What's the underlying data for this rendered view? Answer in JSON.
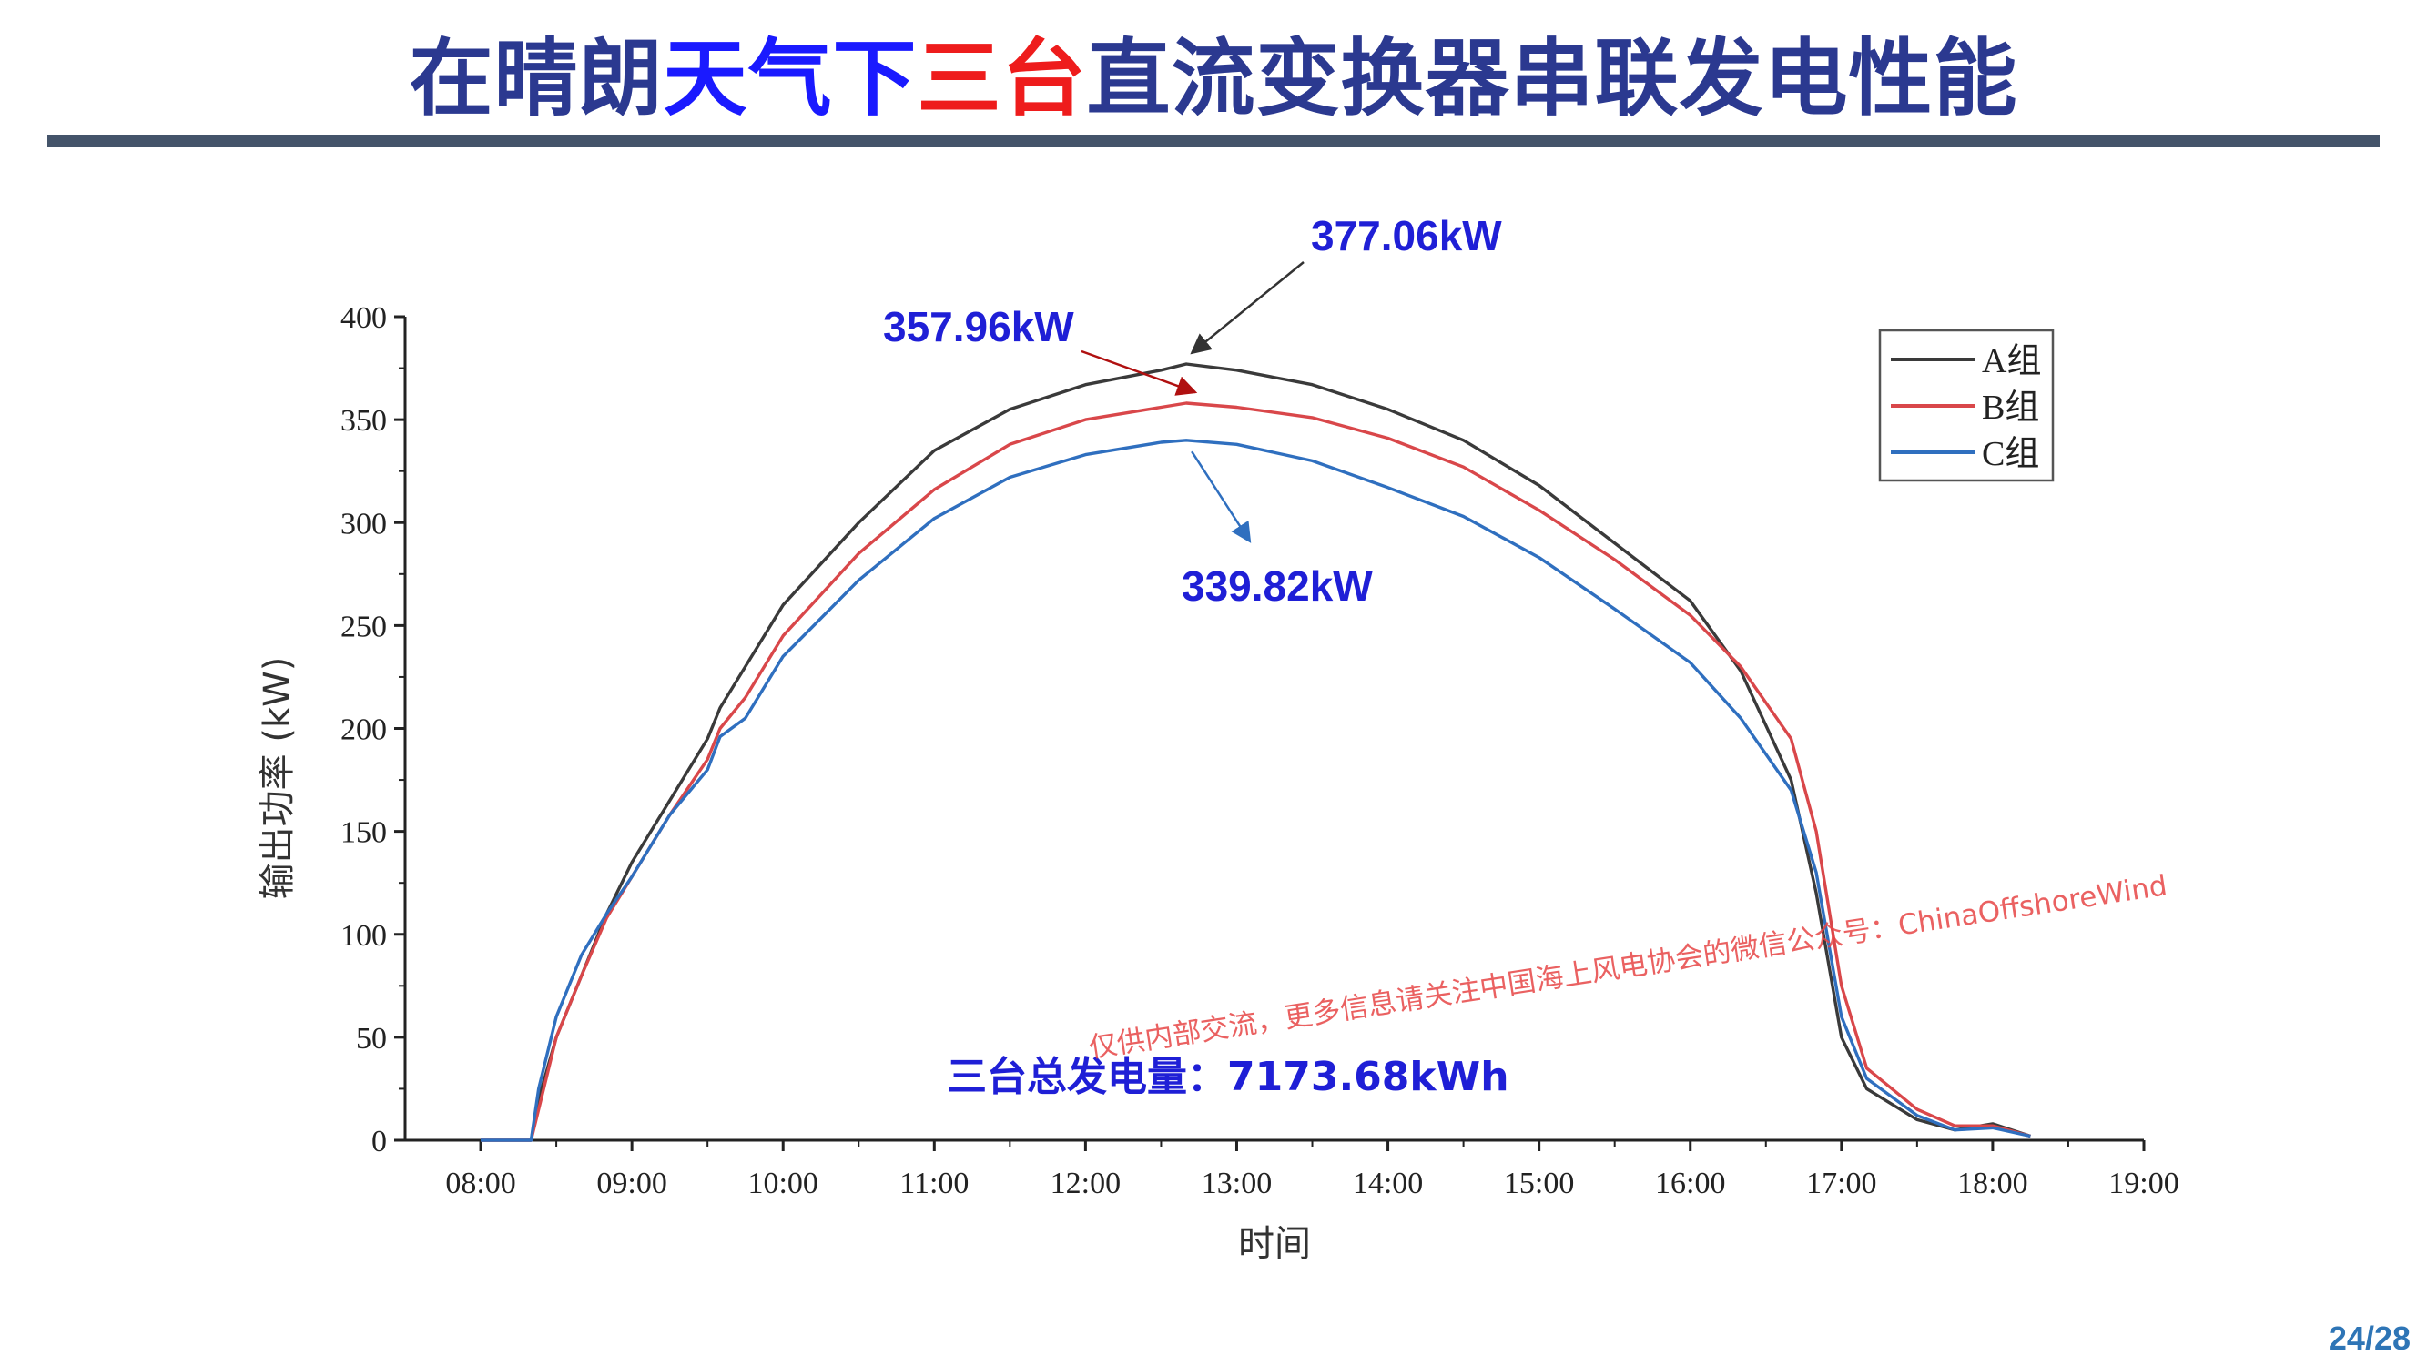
{
  "slide": {
    "title_parts": [
      "在晴朗",
      "天气下",
      "三台",
      "直流变换器串联发电性能"
    ],
    "page_number": "24/28",
    "watermark": "仅供内部交流，更多信息请关注中国海上风电协会的微信公众号：ChinaOffshoreWind"
  },
  "colors": {
    "title": "#2b3990",
    "title_highlight_blue": "#1a1aff",
    "title_highlight_red": "#ee1c1c",
    "rule": "#44546a",
    "series_a": "#3a3a3a",
    "series_b": "#d9474a",
    "series_c": "#2f6fbf",
    "annotation": "#1f1fd6"
  },
  "chart_data": {
    "type": "line",
    "xlabel": "时间",
    "ylabel": "输出功率 (kW)",
    "xlim": [
      "07:30",
      "19:00"
    ],
    "ylim": [
      0,
      400
    ],
    "x_ticks": [
      "08:00",
      "09:00",
      "10:00",
      "11:00",
      "12:00",
      "13:00",
      "14:00",
      "15:00",
      "16:00",
      "17:00",
      "18:00",
      "19:00"
    ],
    "y_ticks": [
      0,
      50,
      100,
      150,
      200,
      250,
      300,
      350,
      400
    ],
    "grid": false,
    "legend_position": "top-right",
    "x": [
      "08:00",
      "08:20",
      "08:23",
      "08:30",
      "08:40",
      "08:50",
      "09:00",
      "09:15",
      "09:30",
      "09:35",
      "09:45",
      "10:00",
      "10:30",
      "11:00",
      "11:30",
      "12:00",
      "12:30",
      "12:40",
      "13:00",
      "13:30",
      "14:00",
      "14:30",
      "15:00",
      "15:30",
      "16:00",
      "16:20",
      "16:40",
      "16:50",
      "17:00",
      "17:10",
      "17:30",
      "17:45",
      "18:00",
      "18:15"
    ],
    "series": [
      {
        "name": "A组",
        "color": "#3a3a3a",
        "values": [
          0,
          0,
          20,
          50,
          80,
          110,
          135,
          165,
          195,
          210,
          230,
          260,
          300,
          335,
          355,
          367,
          374,
          377,
          374,
          367,
          355,
          340,
          318,
          290,
          262,
          228,
          175,
          120,
          50,
          25,
          10,
          5,
          8,
          2
        ]
      },
      {
        "name": "B组",
        "color": "#d9474a",
        "values": [
          0,
          0,
          15,
          50,
          80,
          108,
          128,
          158,
          185,
          200,
          215,
          245,
          285,
          316,
          338,
          350,
          356,
          358,
          356,
          351,
          341,
          327,
          306,
          282,
          255,
          230,
          195,
          150,
          75,
          35,
          15,
          7,
          7,
          2
        ]
      },
      {
        "name": "C组",
        "color": "#2f6fbf",
        "values": [
          0,
          0,
          25,
          60,
          90,
          110,
          128,
          158,
          180,
          196,
          205,
          235,
          272,
          302,
          322,
          333,
          339,
          340,
          338,
          330,
          317,
          303,
          283,
          258,
          232,
          205,
          170,
          130,
          60,
          30,
          12,
          5,
          6,
          2
        ]
      }
    ],
    "annotations": [
      {
        "text": "377.06kW",
        "series": "A组",
        "x": "12:40",
        "y": 377.06
      },
      {
        "text": "357.96kW",
        "series": "B组",
        "x": "12:40",
        "y": 357.96
      },
      {
        "text": "339.82kW",
        "series": "C组",
        "x": "12:40",
        "y": 339.82
      }
    ],
    "total_label": "三台总发电量：7173.68kWh"
  }
}
